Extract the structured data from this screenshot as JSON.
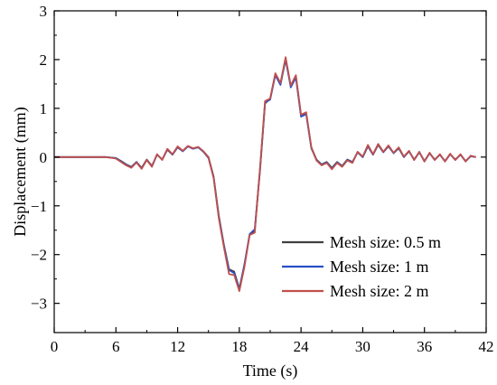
{
  "chart_data": {
    "type": "line",
    "xlabel": "Time (s)",
    "ylabel": "Displacement (mm)",
    "xlim": [
      0,
      42
    ],
    "ylim": [
      -3.6,
      3
    ],
    "x_ticks": [
      0,
      6,
      12,
      18,
      24,
      30,
      36,
      42
    ],
    "x_tick_labels": [
      "0",
      "6",
      "12",
      "18",
      "24",
      "30",
      "36",
      "42"
    ],
    "y_ticks": [
      -3,
      -2,
      -1,
      0,
      1,
      2,
      3
    ],
    "y_tick_labels": [
      "−3",
      "−2",
      "−1",
      "0",
      "1",
      "2",
      "3"
    ],
    "grid": false,
    "legend_position": "bottom-right",
    "series": [
      {
        "name": "Mesh size: 0.5 m",
        "color": "#404040",
        "x": [
          0,
          5,
          6,
          6.5,
          7,
          7.5,
          8,
          8.5,
          9,
          9.5,
          10,
          10.5,
          11,
          11.5,
          12,
          12.5,
          13,
          13.5,
          14,
          14.5,
          15,
          15.5,
          16,
          16.5,
          17,
          17.5,
          18,
          18.5,
          19,
          19.5,
          20,
          20.5,
          21,
          21.5,
          22,
          22.5,
          23,
          23.5,
          24,
          24.5,
          25,
          25.5,
          26,
          26.5,
          27,
          27.5,
          28,
          28.5,
          29,
          29.5,
          30,
          30.5,
          31,
          31.5,
          32,
          32.5,
          33,
          33.5,
          34,
          34.5,
          35,
          35.5,
          36,
          36.5,
          37,
          37.5,
          38,
          38.5,
          39,
          39.5,
          40,
          40.5,
          41
        ],
        "y": [
          0,
          0,
          -0.02,
          -0.08,
          -0.15,
          -0.2,
          -0.1,
          -0.22,
          -0.05,
          -0.18,
          0.05,
          -0.05,
          0.15,
          0.05,
          0.2,
          0.12,
          0.22,
          0.18,
          0.2,
          0.12,
          0.0,
          -0.4,
          -1.2,
          -1.8,
          -2.3,
          -2.35,
          -2.7,
          -2.2,
          -1.6,
          -1.5,
          -0.3,
          1.1,
          1.2,
          1.7,
          1.5,
          2.0,
          1.45,
          1.65,
          0.85,
          0.9,
          0.2,
          -0.05,
          -0.15,
          -0.1,
          -0.22,
          -0.1,
          -0.18,
          -0.05,
          -0.1,
          0.1,
          0.0,
          0.22,
          0.05,
          0.25,
          0.1,
          0.22,
          0.08,
          0.18,
          0.0,
          0.12,
          -0.05,
          0.1,
          -0.08,
          0.08,
          -0.05,
          0.05,
          -0.08,
          0.06,
          -0.05,
          0.05,
          -0.08,
          0.02,
          0.0
        ]
      },
      {
        "name": "Mesh size: 1 m",
        "color": "#2a4fc4",
        "x": [
          0,
          5,
          6,
          6.5,
          7,
          7.5,
          8,
          8.5,
          9,
          9.5,
          10,
          10.5,
          11,
          11.5,
          12,
          12.5,
          13,
          13.5,
          14,
          14.5,
          15,
          15.5,
          16,
          16.5,
          17,
          17.5,
          18,
          18.5,
          19,
          19.5,
          20,
          20.5,
          21,
          21.5,
          22,
          22.5,
          23,
          23.5,
          24,
          24.5,
          25,
          25.5,
          26,
          26.5,
          27,
          27.5,
          28,
          28.5,
          29,
          29.5,
          30,
          30.5,
          31,
          31.5,
          32,
          32.5,
          33,
          33.5,
          34,
          34.5,
          35,
          35.5,
          36,
          36.5,
          37,
          37.5,
          38,
          38.5,
          39,
          39.5,
          40,
          40.5,
          41
        ],
        "y": [
          0,
          0,
          -0.02,
          -0.09,
          -0.16,
          -0.21,
          -0.1,
          -0.23,
          -0.06,
          -0.19,
          0.05,
          -0.05,
          0.16,
          0.05,
          0.21,
          0.12,
          0.22,
          0.17,
          0.2,
          0.11,
          -0.02,
          -0.42,
          -1.22,
          -1.82,
          -2.32,
          -2.38,
          -2.72,
          -2.2,
          -1.58,
          -1.48,
          -0.28,
          1.12,
          1.18,
          1.68,
          1.48,
          2.02,
          1.43,
          1.63,
          0.83,
          0.88,
          0.18,
          -0.06,
          -0.16,
          -0.11,
          -0.23,
          -0.11,
          -0.19,
          -0.06,
          -0.11,
          0.1,
          0.0,
          0.23,
          0.05,
          0.26,
          0.1,
          0.23,
          0.08,
          0.19,
          0.0,
          0.12,
          -0.06,
          0.1,
          -0.09,
          0.08,
          -0.06,
          0.05,
          -0.09,
          0.06,
          -0.06,
          0.05,
          -0.09,
          0.02,
          0.0
        ]
      },
      {
        "name": "Mesh size: 2 m",
        "color": "#c0504d",
        "x": [
          0,
          5,
          6,
          6.5,
          7,
          7.5,
          8,
          8.5,
          9,
          9.5,
          10,
          10.5,
          11,
          11.5,
          12,
          12.5,
          13,
          13.5,
          14,
          14.5,
          15,
          15.5,
          16,
          16.5,
          17,
          17.5,
          18,
          18.5,
          19,
          19.5,
          20,
          20.5,
          21,
          21.5,
          22,
          22.5,
          23,
          23.5,
          24,
          24.5,
          25,
          25.5,
          26,
          26.5,
          27,
          27.5,
          28,
          28.5,
          29,
          29.5,
          30,
          30.5,
          31,
          31.5,
          32,
          32.5,
          33,
          33.5,
          34,
          34.5,
          35,
          35.5,
          36,
          36.5,
          37,
          37.5,
          38,
          38.5,
          39,
          39.5,
          40,
          40.5,
          41
        ],
        "y": [
          0,
          0,
          -0.03,
          -0.1,
          -0.17,
          -0.22,
          -0.11,
          -0.24,
          -0.06,
          -0.2,
          0.06,
          -0.06,
          0.17,
          0.06,
          0.22,
          0.13,
          0.23,
          0.18,
          0.21,
          0.12,
          -0.01,
          -0.43,
          -1.25,
          -1.85,
          -2.4,
          -2.42,
          -2.75,
          -2.25,
          -1.6,
          -1.55,
          -0.25,
          1.15,
          1.2,
          1.72,
          1.52,
          2.05,
          1.47,
          1.68,
          0.87,
          0.92,
          0.2,
          -0.07,
          -0.17,
          -0.12,
          -0.25,
          -0.12,
          -0.2,
          -0.07,
          -0.12,
          0.11,
          0.01,
          0.25,
          0.06,
          0.27,
          0.11,
          0.24,
          0.09,
          0.2,
          0.01,
          0.13,
          -0.06,
          0.11,
          -0.09,
          0.09,
          -0.06,
          0.06,
          -0.09,
          0.07,
          -0.06,
          0.06,
          -0.09,
          0.03,
          0.0
        ]
      }
    ]
  }
}
